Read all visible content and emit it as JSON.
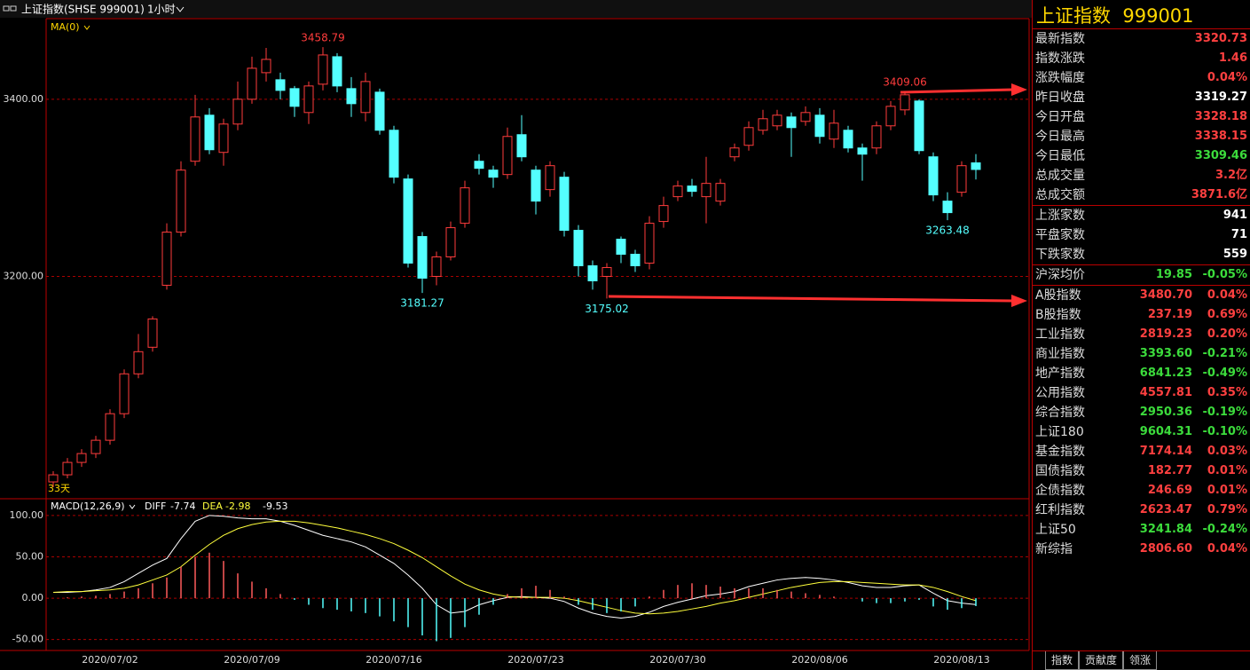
{
  "header": {
    "title": "上证指数(SHSE 999001)",
    "period": "1小时"
  },
  "chart_data": [
    {
      "type": "candlestick",
      "indicator": "MA(0)",
      "count_label": "33天",
      "categories": [
        null,
        null,
        null,
        null,
        "2020/07/02",
        null,
        null,
        null,
        null,
        null,
        null,
        null,
        null,
        null,
        "2020/07/09",
        null,
        null,
        null,
        null,
        null,
        null,
        null,
        null,
        null,
        "2020/07/16",
        null,
        null,
        null,
        null,
        null,
        null,
        null,
        null,
        null,
        "2020/07/23",
        null,
        null,
        null,
        null,
        null,
        null,
        null,
        null,
        null,
        "2020/07/30",
        null,
        null,
        null,
        null,
        null,
        null,
        null,
        null,
        null,
        "2020/08/06",
        null,
        null,
        null,
        null,
        null,
        null,
        null,
        null,
        null,
        "2020/08/13",
        null
      ],
      "open": [
        2968,
        2976,
        2990,
        3000,
        3015,
        3045,
        3090,
        3120,
        3190,
        3250,
        3330,
        3382,
        3340,
        3372,
        3400,
        3430,
        3422,
        3412,
        3385,
        3417,
        3448,
        3412,
        3385,
        3408,
        3365,
        3310,
        3245,
        3200,
        3222,
        3260,
        3330,
        3320,
        3315,
        3360,
        3320,
        3298,
        3312,
        3252,
        3212,
        3200,
        3242,
        3225,
        3215,
        3262,
        3290,
        3302,
        3290,
        3285,
        3335,
        3348,
        3365,
        3370,
        3380,
        3375,
        3382,
        3355,
        3365,
        3345,
        3345,
        3370,
        3388,
        3398,
        3335,
        3285,
        3295,
        3328.18
      ],
      "high": [
        2980,
        2995,
        3005,
        3020,
        3050,
        3095,
        3135,
        3155,
        3260,
        3330,
        3405,
        3390,
        3378,
        3420,
        3448,
        3458,
        3430,
        3415,
        3420,
        3458.79,
        3452,
        3425,
        3430,
        3412,
        3370,
        3315,
        3250,
        3228,
        3262,
        3308,
        3338,
        3325,
        3368,
        3382,
        3325,
        3330,
        3318,
        3258,
        3218,
        3215,
        3245,
        3230,
        3268,
        3290,
        3308,
        3310,
        3335,
        3310,
        3350,
        3375,
        3388,
        3388,
        3385,
        3392,
        3390,
        3388,
        3370,
        3350,
        3375,
        3398,
        3409.06,
        3400,
        3340,
        3295,
        3330,
        3338.15
      ],
      "low": [
        2962,
        2972,
        2985,
        2995,
        3010,
        3040,
        3085,
        3115,
        3185,
        3245,
        3325,
        3338,
        3325,
        3365,
        3395,
        3420,
        3400,
        3380,
        3372,
        3410,
        3408,
        3380,
        3375,
        3360,
        3305,
        3210,
        3181.27,
        3190,
        3218,
        3255,
        3315,
        3300,
        3310,
        3330,
        3270,
        3290,
        3245,
        3200,
        3185,
        3175.02,
        3215,
        3205,
        3208,
        3255,
        3285,
        3290,
        3260,
        3280,
        3330,
        3342,
        3360,
        3365,
        3335,
        3370,
        3350,
        3345,
        3340,
        3308,
        3338,
        3365,
        3382,
        3338,
        3285,
        3263.48,
        3290,
        3309.46
      ],
      "close": [
        2976,
        2990,
        3000,
        3015,
        3045,
        3090,
        3115,
        3152,
        3250,
        3320,
        3380,
        3343,
        3372,
        3400,
        3435,
        3445,
        3410,
        3392,
        3415,
        3450,
        3415,
        3395,
        3420,
        3365,
        3312,
        3215,
        3198,
        3222,
        3255,
        3300,
        3322,
        3312,
        3358,
        3335,
        3285,
        3325,
        3252,
        3212,
        3195,
        3210,
        3225,
        3212,
        3260,
        3280,
        3302,
        3296,
        3305,
        3305,
        3345,
        3368,
        3378,
        3382,
        3368,
        3385,
        3358,
        3373,
        3345,
        3338,
        3370,
        3392,
        3405,
        3342,
        3292,
        3272,
        3325,
        3320.73
      ],
      "up_color": "#ff3c3c",
      "down_color": "#54ffff",
      "ylim": [
        2951,
        3490
      ],
      "yticks": [
        {
          "value": 3200,
          "label": "3200.00"
        },
        {
          "value": 3400,
          "label": "3400.00"
        }
      ],
      "grid": true,
      "annotations": [
        {
          "value": 3458.79,
          "kind": "high"
        },
        {
          "value": 3181.27,
          "kind": "low"
        },
        {
          "value": 3175.02,
          "kind": "low"
        },
        {
          "value": 3409.06,
          "kind": "high"
        },
        {
          "value": 3263.48,
          "kind": "low"
        }
      ]
    },
    {
      "type": "macd",
      "label": "MACD(12,26,9)",
      "series": [
        {
          "name": "DIFF",
          "color": "#ffffff",
          "values": [
            7,
            7,
            8,
            10,
            13,
            20,
            30,
            40,
            48,
            72,
            93,
            100,
            99,
            97,
            96,
            96,
            93,
            88,
            82,
            76,
            72,
            68,
            62,
            52,
            42,
            28,
            12,
            -8,
            -18,
            -16,
            -8,
            -3,
            1,
            2,
            1,
            0,
            -4,
            -12,
            -18,
            -22,
            -24,
            -22,
            -17,
            -10,
            -5,
            -1,
            3,
            5,
            8,
            14,
            18,
            22,
            24,
            25,
            24,
            22,
            19,
            15,
            13,
            13,
            15,
            16,
            6,
            -3,
            -6,
            -7.74
          ]
        },
        {
          "name": "DEA",
          "color": "#ffff3c",
          "values": [
            7,
            8,
            8,
            9,
            10,
            12,
            16,
            22,
            28,
            38,
            52,
            65,
            76,
            84,
            89,
            92,
            93,
            93,
            91,
            88,
            85,
            81,
            77,
            72,
            66,
            58,
            49,
            38,
            27,
            17,
            10,
            5,
            2,
            1,
            1,
            1,
            0,
            -3,
            -7,
            -11,
            -15,
            -18,
            -19,
            -18,
            -16,
            -13,
            -10,
            -6,
            -3,
            1,
            5,
            9,
            13,
            16,
            19,
            20,
            20,
            19,
            18,
            17,
            16,
            16,
            13,
            8,
            2,
            -2.98
          ]
        },
        {
          "color": "#ffffff",
          "up_color": "#ff5a5a",
          "down_color": "#54ffff",
          "values": [
            0,
            1,
            2,
            3,
            5,
            8,
            12,
            18,
            25,
            38,
            50,
            55,
            45,
            30,
            20,
            12,
            5,
            -2,
            -8,
            -12,
            -14,
            -16,
            -18,
            -22,
            -28,
            -35,
            -45,
            -52,
            -48,
            -35,
            -20,
            -8,
            5,
            12,
            15,
            10,
            2,
            -8,
            -14,
            -18,
            -16,
            -10,
            2,
            10,
            16,
            18,
            16,
            14,
            12,
            12,
            12,
            10,
            8,
            6,
            4,
            2,
            0,
            -4,
            -6,
            -6,
            -4,
            -2,
            -10,
            -14,
            -12,
            -9.53
          ]
        }
      ],
      "ylim": [
        -60,
        117
      ],
      "yticks": [
        {
          "value": -50,
          "label": "-50.00"
        },
        {
          "value": 0,
          "label": "0.00"
        },
        {
          "value": 50,
          "label": "50.00"
        },
        {
          "value": 100,
          "label": "100.00"
        }
      ],
      "grid": true
    }
  ],
  "quote_panel": {
    "name": "上证指数",
    "code": "999001",
    "stats": [
      {
        "label": "最新指数",
        "value": "3320.73",
        "color": "#ff4040"
      },
      {
        "label": "指数涨跌",
        "value": "1.46",
        "color": "#ff4040"
      },
      {
        "label": "涨跌幅度",
        "value": "0.04%",
        "color": "#ff4040"
      },
      {
        "label": "昨日收盘",
        "value": "3319.27",
        "color": "#ffffff"
      },
      {
        "label": "今日开盘",
        "value": "3328.18",
        "color": "#ff4040"
      },
      {
        "label": "今日最高",
        "value": "3338.15",
        "color": "#ff4040"
      },
      {
        "label": "今日最低",
        "value": "3309.46",
        "color": "#3cdc3c"
      },
      {
        "label": "总成交量",
        "value": "3.2亿",
        "color": "#ff4040"
      },
      {
        "label": "总成交额",
        "value": "3871.6亿",
        "color": "#ff4040"
      }
    ],
    "breadth": [
      {
        "label": "上涨家数",
        "value": "941",
        "color": "#ffffff"
      },
      {
        "label": "平盘家数",
        "value": "71",
        "color": "#ffffff"
      },
      {
        "label": "下跌家数",
        "value": "559",
        "color": "#ffffff"
      }
    ],
    "average": {
      "label": "沪深均价",
      "value": "19.85",
      "change": "-0.05%",
      "color": "#3cdc3c"
    },
    "indices": [
      {
        "name": "A股指数",
        "value": "3480.70",
        "change": "0.04%",
        "color": "#ff4040"
      },
      {
        "name": "B股指数",
        "value": "237.19",
        "change": "0.69%",
        "color": "#ff4040"
      },
      {
        "name": "工业指数",
        "value": "2819.23",
        "change": "0.20%",
        "color": "#ff4040"
      },
      {
        "name": "商业指数",
        "value": "3393.60",
        "change": "-0.21%",
        "color": "#3cdc3c"
      },
      {
        "name": "地产指数",
        "value": "6841.23",
        "change": "-0.49%",
        "color": "#3cdc3c"
      },
      {
        "name": "公用指数",
        "value": "4557.81",
        "change": "0.35%",
        "color": "#ff4040"
      },
      {
        "name": "综合指数",
        "value": "2950.36",
        "change": "-0.19%",
        "color": "#3cdc3c"
      },
      {
        "name": "上证180",
        "value": "9604.31",
        "change": "-0.10%",
        "color": "#3cdc3c"
      },
      {
        "name": "基金指数",
        "value": "7174.14",
        "change": "0.03%",
        "color": "#ff4040"
      },
      {
        "name": "国债指数",
        "value": "182.77",
        "change": "0.01%",
        "color": "#ff4040"
      },
      {
        "name": "企债指数",
        "value": "246.69",
        "change": "0.01%",
        "color": "#ff4040"
      },
      {
        "name": "红利指数",
        "value": "2623.47",
        "change": "0.79%",
        "color": "#ff4040"
      },
      {
        "name": "上证50",
        "value": "3241.84",
        "change": "-0.24%",
        "color": "#3cdc3c"
      },
      {
        "name": "新综指",
        "value": "2806.60",
        "change": "0.04%",
        "color": "#ff4040"
      }
    ]
  },
  "tabs": [
    "指数",
    "贡献度",
    "领涨"
  ]
}
